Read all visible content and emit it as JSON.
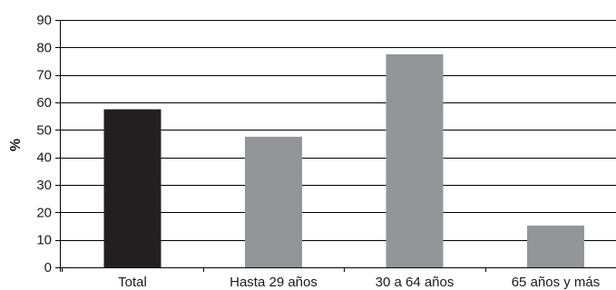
{
  "chart_data": {
    "type": "bar",
    "title": "",
    "xlabel": "",
    "ylabel": "%",
    "ylim": [
      0,
      90
    ],
    "yticks": [
      0,
      10,
      20,
      30,
      40,
      50,
      60,
      70,
      80,
      90
    ],
    "grid": true,
    "categories": [
      "Total",
      "Hasta 29 años",
      "30 a 64 años",
      "65 años y más"
    ],
    "values": [
      57.5,
      47.5,
      77.5,
      15.2
    ],
    "colors": {
      "highlight": "#231f20",
      "default": "#939598",
      "grid": "#000000"
    },
    "highlight_index": 0
  }
}
